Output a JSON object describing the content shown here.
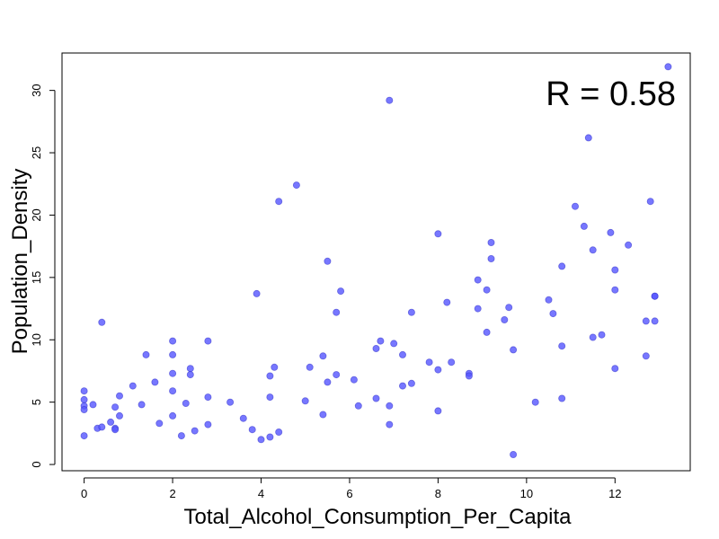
{
  "chart_data": {
    "type": "scatter",
    "title": "",
    "xlabel": "Total_Alcohol_Consumption_Per_Capita",
    "ylabel": "Population_Density",
    "xlim": [
      -0.5,
      13.7
    ],
    "ylim": [
      -0.5,
      33
    ],
    "xticks": [
      0,
      2,
      4,
      6,
      8,
      10,
      12
    ],
    "yticks": [
      0,
      5,
      10,
      15,
      20,
      25,
      30
    ],
    "grid": false,
    "annotation": "R =  0.58",
    "point_color": "#5555ff",
    "point_stroke": "#3333cc",
    "points": [
      [
        0.0,
        5.9
      ],
      [
        0.0,
        5.2
      ],
      [
        0.0,
        4.7
      ],
      [
        0.0,
        4.4
      ],
      [
        0.0,
        2.3
      ],
      [
        0.2,
        4.8
      ],
      [
        0.3,
        2.9
      ],
      [
        0.4,
        3.0
      ],
      [
        0.4,
        11.4
      ],
      [
        0.6,
        3.4
      ],
      [
        0.7,
        2.9
      ],
      [
        0.7,
        2.8
      ],
      [
        0.7,
        4.6
      ],
      [
        0.8,
        3.9
      ],
      [
        0.8,
        5.5
      ],
      [
        1.1,
        6.3
      ],
      [
        1.3,
        4.8
      ],
      [
        1.4,
        8.8
      ],
      [
        1.6,
        6.6
      ],
      [
        1.7,
        3.3
      ],
      [
        2.0,
        9.9
      ],
      [
        2.0,
        8.8
      ],
      [
        2.0,
        7.3
      ],
      [
        2.0,
        5.9
      ],
      [
        2.0,
        3.9
      ],
      [
        2.2,
        2.3
      ],
      [
        2.3,
        4.9
      ],
      [
        2.4,
        7.7
      ],
      [
        2.4,
        7.2
      ],
      [
        2.5,
        2.7
      ],
      [
        2.8,
        9.9
      ],
      [
        2.8,
        5.4
      ],
      [
        2.8,
        3.2
      ],
      [
        3.3,
        5.0
      ],
      [
        3.6,
        3.7
      ],
      [
        3.8,
        2.8
      ],
      [
        3.9,
        13.7
      ],
      [
        4.0,
        2.0
      ],
      [
        4.2,
        7.1
      ],
      [
        4.2,
        5.4
      ],
      [
        4.2,
        2.2
      ],
      [
        4.3,
        7.8
      ],
      [
        4.4,
        21.1
      ],
      [
        4.4,
        2.6
      ],
      [
        4.8,
        22.4
      ],
      [
        5.0,
        5.1
      ],
      [
        5.1,
        7.8
      ],
      [
        5.4,
        8.7
      ],
      [
        5.4,
        4.0
      ],
      [
        5.5,
        16.3
      ],
      [
        5.5,
        6.6
      ],
      [
        5.7,
        12.2
      ],
      [
        5.7,
        7.2
      ],
      [
        5.8,
        13.9
      ],
      [
        6.1,
        6.8
      ],
      [
        6.2,
        4.7
      ],
      [
        6.6,
        9.3
      ],
      [
        6.6,
        5.3
      ],
      [
        6.7,
        9.9
      ],
      [
        6.9,
        29.2
      ],
      [
        6.9,
        4.7
      ],
      [
        6.9,
        3.2
      ],
      [
        7.0,
        9.7
      ],
      [
        7.2,
        8.8
      ],
      [
        7.2,
        6.3
      ],
      [
        7.4,
        12.2
      ],
      [
        7.4,
        6.5
      ],
      [
        7.8,
        8.2
      ],
      [
        8.0,
        18.5
      ],
      [
        8.0,
        7.6
      ],
      [
        8.0,
        4.3
      ],
      [
        8.2,
        13.0
      ],
      [
        8.3,
        8.2
      ],
      [
        8.7,
        7.3
      ],
      [
        8.7,
        7.1
      ],
      [
        8.9,
        14.8
      ],
      [
        8.9,
        12.5
      ],
      [
        9.1,
        14.0
      ],
      [
        9.1,
        10.6
      ],
      [
        9.2,
        17.8
      ],
      [
        9.2,
        16.5
      ],
      [
        9.5,
        11.6
      ],
      [
        9.6,
        12.6
      ],
      [
        9.7,
        9.2
      ],
      [
        9.7,
        0.8
      ],
      [
        10.2,
        5.0
      ],
      [
        10.5,
        13.2
      ],
      [
        10.6,
        12.1
      ],
      [
        10.8,
        15.9
      ],
      [
        10.8,
        9.5
      ],
      [
        10.8,
        5.3
      ],
      [
        11.1,
        20.7
      ],
      [
        11.3,
        19.1
      ],
      [
        11.4,
        26.2
      ],
      [
        11.5,
        17.2
      ],
      [
        11.5,
        10.2
      ],
      [
        11.7,
        10.4
      ],
      [
        11.9,
        18.6
      ],
      [
        12.0,
        15.6
      ],
      [
        12.0,
        14.0
      ],
      [
        12.0,
        7.7
      ],
      [
        12.3,
        17.6
      ],
      [
        12.7,
        11.5
      ],
      [
        12.7,
        8.7
      ],
      [
        12.8,
        21.1
      ],
      [
        12.9,
        13.5
      ],
      [
        12.9,
        13.5
      ],
      [
        12.9,
        11.5
      ],
      [
        13.2,
        31.9
      ]
    ]
  }
}
